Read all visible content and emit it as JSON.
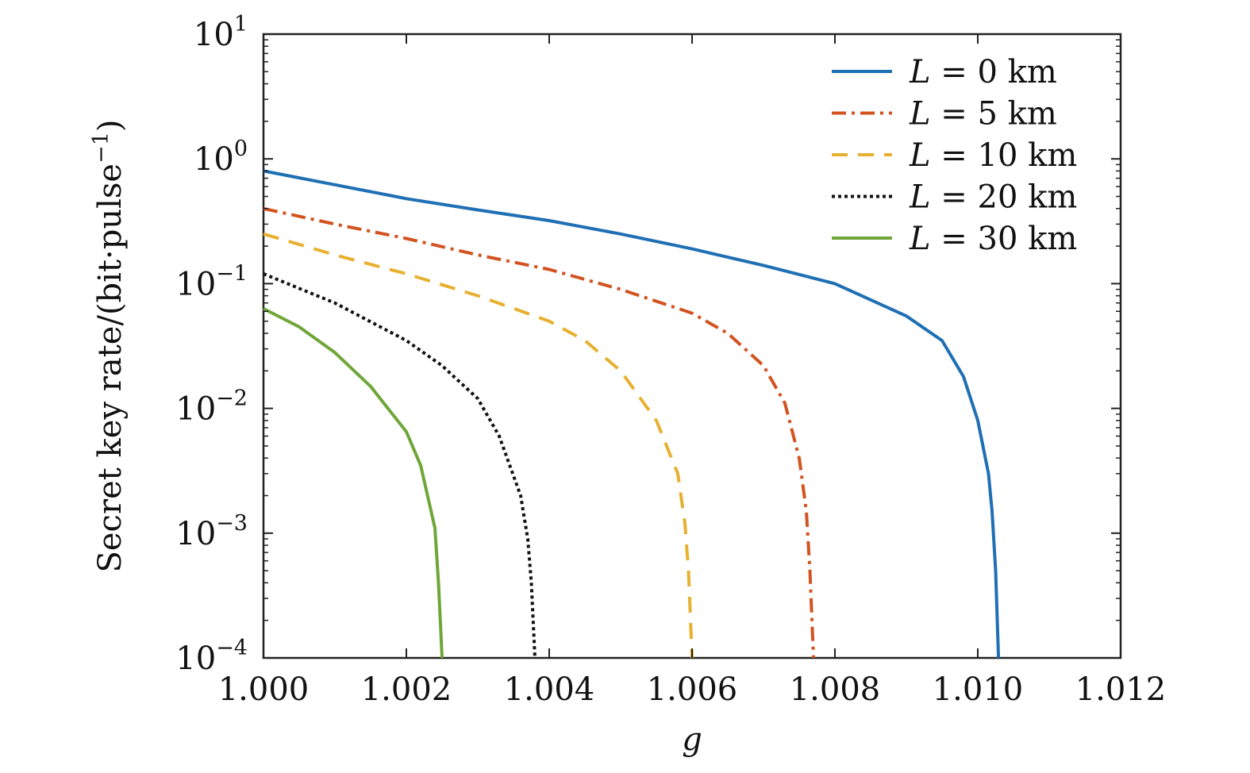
{
  "chart_data": {
    "type": "line",
    "title": "",
    "xlabel": "g",
    "ylabel": "Secret key rate/(bit·pulse⁻¹)",
    "ylabel_parts": {
      "main": "Secret key rate/(bit·pulse",
      "exp": "−1",
      "close": ")"
    },
    "xscale": "linear",
    "yscale": "log",
    "xlim": [
      1.0,
      1.012
    ],
    "ylim": [
      0.0001,
      10
    ],
    "grid": false,
    "legend_position": "top-right",
    "x_ticks": [
      {
        "value": 1.0,
        "label": "1.000"
      },
      {
        "value": 1.002,
        "label": "1.002"
      },
      {
        "value": 1.004,
        "label": "1.004"
      },
      {
        "value": 1.006,
        "label": "1.006"
      },
      {
        "value": 1.008,
        "label": "1.008"
      },
      {
        "value": 1.01,
        "label": "1.010"
      },
      {
        "value": 1.012,
        "label": "1.012"
      }
    ],
    "y_ticks": [
      {
        "value": 10,
        "base": "10",
        "exp": "1"
      },
      {
        "value": 1,
        "base": "10",
        "exp": "0"
      },
      {
        "value": 0.1,
        "base": "10",
        "exp": "−1"
      },
      {
        "value": 0.01,
        "base": "10",
        "exp": "−2"
      },
      {
        "value": 0.001,
        "base": "10",
        "exp": "−3"
      },
      {
        "value": 0.0001,
        "base": "10",
        "exp": "−4"
      }
    ],
    "series": [
      {
        "name": "L = 0 km",
        "name_var": "L",
        "name_rest": " = 0 km",
        "color": "#1f6fb4",
        "style": "solid",
        "x": [
          1.0,
          1.001,
          1.002,
          1.003,
          1.004,
          1.005,
          1.006,
          1.007,
          1.008,
          1.009,
          1.0095,
          1.0098,
          1.01,
          1.01015,
          1.0102,
          1.01025,
          1.01029
        ],
        "y": [
          0.8,
          0.62,
          0.48,
          0.39,
          0.32,
          0.25,
          0.19,
          0.14,
          0.1,
          0.055,
          0.035,
          0.018,
          0.008,
          0.003,
          0.0015,
          0.0005,
          0.0001
        ]
      },
      {
        "name": "L = 5 km",
        "name_var": "L",
        "name_rest": " = 5 km",
        "color": "#d35320",
        "style": "dashdot",
        "x": [
          1.0,
          1.001,
          1.002,
          1.003,
          1.004,
          1.005,
          1.006,
          1.0065,
          1.007,
          1.0073,
          1.0075,
          1.0076,
          1.00765,
          1.0077
        ],
        "y": [
          0.4,
          0.3,
          0.23,
          0.17,
          0.13,
          0.09,
          0.058,
          0.04,
          0.022,
          0.011,
          0.004,
          0.0015,
          0.0005,
          0.0001
        ]
      },
      {
        "name": "L = 10 km",
        "name_var": "L",
        "name_rest": " = 10 km",
        "color": "#e8b030",
        "style": "dashed",
        "x": [
          1.0,
          1.001,
          1.002,
          1.003,
          1.004,
          1.0045,
          1.005,
          1.0055,
          1.0058,
          1.0059,
          1.00595,
          1.006
        ],
        "y": [
          0.25,
          0.17,
          0.12,
          0.08,
          0.05,
          0.035,
          0.02,
          0.008,
          0.003,
          0.0012,
          0.0005,
          0.0001
        ]
      },
      {
        "name": "L = 20 km",
        "name_var": "L",
        "name_rest": " = 20 km",
        "color": "#111111",
        "style": "dotted",
        "x": [
          1.0,
          1.001,
          1.002,
          1.0025,
          1.003,
          1.0033,
          1.0036,
          1.0037,
          1.00375,
          1.0038
        ],
        "y": [
          0.12,
          0.07,
          0.035,
          0.022,
          0.012,
          0.006,
          0.002,
          0.0009,
          0.0004,
          0.0001
        ]
      },
      {
        "name": "L = 30 km",
        "name_var": "L",
        "name_rest": " = 30 km",
        "color": "#6fa638",
        "style": "solid",
        "x": [
          1.0,
          1.0005,
          1.001,
          1.0015,
          1.002,
          1.0022,
          1.0024,
          1.00245,
          1.0025
        ],
        "y": [
          0.063,
          0.045,
          0.028,
          0.015,
          0.0065,
          0.0035,
          0.0011,
          0.0004,
          0.0001
        ]
      }
    ]
  }
}
